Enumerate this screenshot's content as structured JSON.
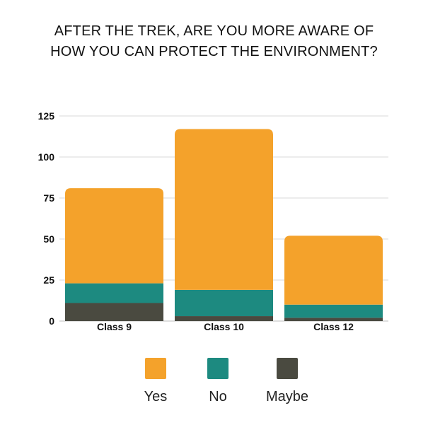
{
  "chart_data": {
    "type": "bar",
    "stacked": true,
    "title_lines": [
      "AFTER THE TREK, ARE YOU MORE AWARE OF",
      "HOW YOU CAN PROTECT THE ENVIRONMENT?"
    ],
    "categories": [
      "Class 9",
      "Class 10",
      "Class 12"
    ],
    "series": [
      {
        "name": "Maybe",
        "color": "#4a4a40",
        "values": [
          11,
          3,
          2
        ]
      },
      {
        "name": "No",
        "color": "#1d8a80",
        "values": [
          12,
          16,
          8
        ]
      },
      {
        "name": "Yes",
        "color": "#f4a22b",
        "values": [
          58,
          98,
          42
        ]
      }
    ],
    "y_ticks": [
      "0",
      "25",
      "50",
      "75",
      "100",
      "125"
    ],
    "ylim": [
      0,
      125
    ],
    "grid": true,
    "legend_position": "bottom",
    "legend": [
      {
        "name": "Yes",
        "color": "#f4a22b"
      },
      {
        "name": "No",
        "color": "#1d8a80"
      },
      {
        "name": "Maybe",
        "color": "#4a4a40"
      }
    ]
  }
}
